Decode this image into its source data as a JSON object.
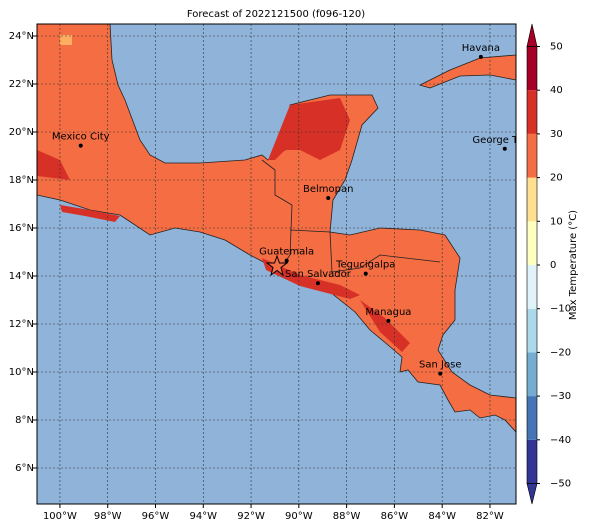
{
  "title": "Forecast of 2022121500 (f096-120)",
  "map": {
    "xlim": [
      -100.96,
      -80.91
    ],
    "ylim": [
      4.5,
      24.5
    ],
    "xticks": [
      {
        "value": -100,
        "label": "100°W"
      },
      {
        "value": -98,
        "label": "98°W"
      },
      {
        "value": -96,
        "label": "96°W"
      },
      {
        "value": -94,
        "label": "94°W"
      },
      {
        "value": -92,
        "label": "92°W"
      },
      {
        "value": -90,
        "label": "90°W"
      },
      {
        "value": -88,
        "label": "88°W"
      },
      {
        "value": -86,
        "label": "86°W"
      },
      {
        "value": -84,
        "label": "84°W"
      },
      {
        "value": -82,
        "label": "82°W"
      }
    ],
    "yticks": [
      {
        "value": 6,
        "label": "6°N"
      },
      {
        "value": 8,
        "label": "8°N"
      },
      {
        "value": 10,
        "label": "10°N"
      },
      {
        "value": 12,
        "label": "12°N"
      },
      {
        "value": 14,
        "label": "14°N"
      },
      {
        "value": 16,
        "label": "16°N"
      },
      {
        "value": 18,
        "label": "18°N"
      },
      {
        "value": 20,
        "label": "20°N"
      },
      {
        "value": 22,
        "label": "22°N"
      },
      {
        "value": 24,
        "label": "24°N"
      }
    ],
    "grid": true,
    "cities": [
      {
        "name": "Mexico City",
        "lon": -99.13,
        "lat": 19.43
      },
      {
        "name": "Havana",
        "lon": -82.38,
        "lat": 23.13
      },
      {
        "name": "George Town",
        "lon": -81.38,
        "lat": 19.3
      },
      {
        "name": "Belmopan",
        "lon": -88.77,
        "lat": 17.25
      },
      {
        "name": "Guatemala",
        "lon": -90.51,
        "lat": 14.64
      },
      {
        "name": "San Salvador",
        "lon": -89.2,
        "lat": 13.7
      },
      {
        "name": "Tegucigalpa",
        "lon": -87.2,
        "lat": 14.1
      },
      {
        "name": "Managua",
        "lon": -86.25,
        "lat": 12.13
      },
      {
        "name": "San Jose",
        "lon": -84.08,
        "lat": 9.93
      }
    ]
  },
  "colorbar": {
    "label": "Max Temperature (°C)",
    "ticks": [
      {
        "value": -50,
        "label": "−50"
      },
      {
        "value": -40,
        "label": "−40"
      },
      {
        "value": -30,
        "label": "−30"
      },
      {
        "value": -20,
        "label": "−20"
      },
      {
        "value": -10,
        "label": "−10"
      },
      0,
      10,
      20,
      30,
      40,
      50
    ],
    "colors": [
      "#313695",
      "#4575b4",
      "#74add1",
      "#abd9e9",
      "#e0f3f8",
      "#ffffbf",
      "#fee090",
      "#f46d43",
      "#d73027",
      "#a50026"
    ]
  }
}
